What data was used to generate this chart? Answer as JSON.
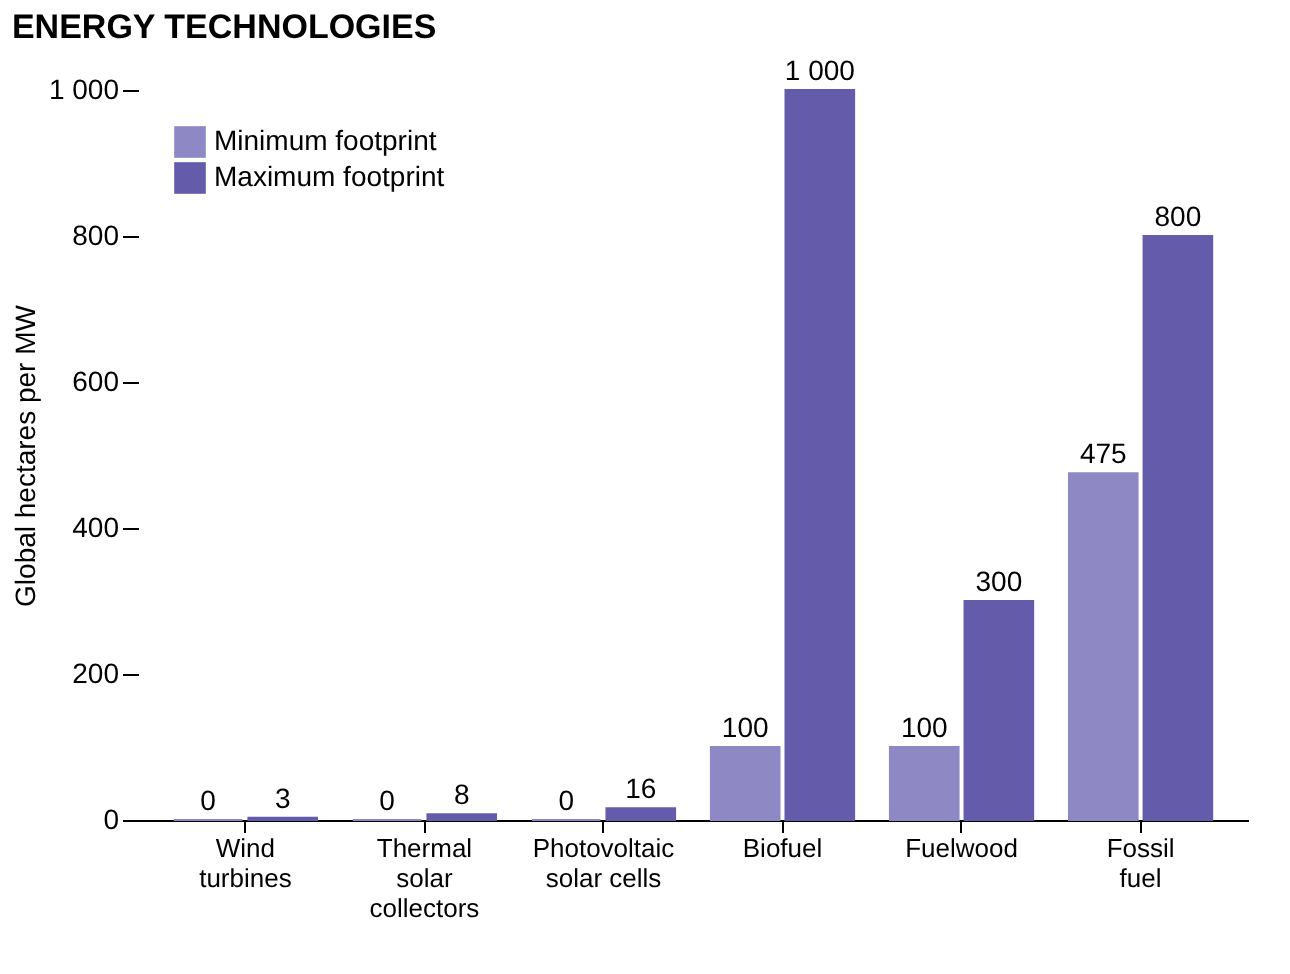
{
  "chart_data": {
    "type": "bar",
    "title": "ENERGY TECHNOLOGIES",
    "ylabel": "Global hectares per MW",
    "categories": [
      "Wind\nturbines",
      "Thermal\nsolar\ncollectors",
      "Photovoltaic\nsolar cells",
      "Biofuel",
      "Fuelwood",
      "Fossil\nfuel"
    ],
    "series": [
      {
        "name": "Minimum footprint",
        "color": "#8e88c4",
        "values": [
          0,
          0,
          0,
          100,
          100,
          475
        ],
        "value_labels": [
          "0",
          "0",
          "0",
          "100",
          "100",
          "475"
        ]
      },
      {
        "name": "Maximum footprint",
        "color": "#645cab",
        "values": [
          3,
          8,
          16,
          1000,
          300,
          800
        ],
        "value_labels": [
          "3",
          "8",
          "16",
          "1 000",
          "300",
          "800"
        ]
      }
    ],
    "ylim": [
      0,
      1000
    ],
    "yticks": [
      0,
      200,
      400,
      600,
      {
        "value": 800,
        "label": "800"
      },
      {
        "value": 1000,
        "label": "1 000"
      }
    ],
    "grid": false,
    "legend": "top left"
  }
}
